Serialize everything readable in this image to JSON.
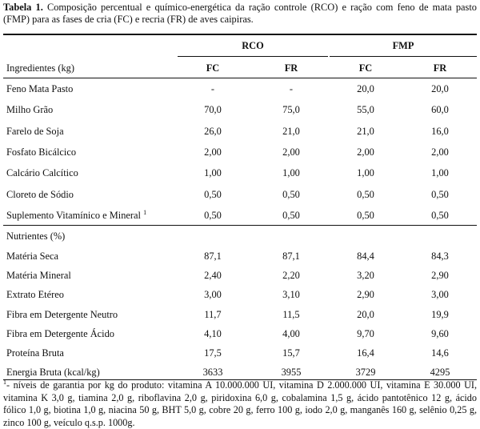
{
  "caption": {
    "label": "Tabela 1.",
    "text": " Composição percentual e químico-energética da ração controle (RCO) e ração com feno de mata pasto (FMP) para as fases de cria (FC) e recria (FR) de aves caipiras."
  },
  "groups": {
    "rco": "RCO",
    "fmp": "FMP"
  },
  "subheaders": {
    "ingredients": "Ingredientes (kg)",
    "fc": "FC",
    "fr": "FR"
  },
  "ingredients": [
    {
      "name": "Feno Mata Pasto",
      "values": [
        "-",
        "-",
        "20,0",
        "20,0"
      ]
    },
    {
      "name": "Milho Grão",
      "values": [
        "70,0",
        "75,0",
        "55,0",
        "60,0"
      ]
    },
    {
      "name": "Farelo de Soja",
      "values": [
        "26,0",
        "21,0",
        "21,0",
        "16,0"
      ]
    },
    {
      "name": "Fosfato Bicálcico",
      "values": [
        "2,00",
        "2,00",
        "2,00",
        "2,00"
      ]
    },
    {
      "name": "Calcário Calcítico",
      "values": [
        "1,00",
        "1,00",
        "1,00",
        "1,00"
      ]
    },
    {
      "name": "Cloreto de Sódio",
      "values": [
        "0,50",
        "0,50",
        "0,50",
        "0,50"
      ]
    },
    {
      "name": "Suplemento Vitamínico e Mineral",
      "sup": "1",
      "values": [
        "0,50",
        "0,50",
        "0,50",
        "0,50"
      ]
    }
  ],
  "nutrients_header": "Nutrientes (%)",
  "nutrients": [
    {
      "name": "Matéria Seca",
      "values": [
        "87,1",
        "87,1",
        "84,4",
        "84,3"
      ]
    },
    {
      "name": "Matéria Mineral",
      "values": [
        "2,40",
        "2,20",
        "3,20",
        "2,90"
      ]
    },
    {
      "name": "Extrato Etéreo",
      "values": [
        "3,00",
        "3,10",
        "2,90",
        "3,00"
      ]
    },
    {
      "name": "Fibra em Detergente Neutro",
      "values": [
        "11,7",
        "11,5",
        "20,0",
        "19,9"
      ]
    },
    {
      "name": "Fibra em Detergente Ácido",
      "values": [
        "4,10",
        "4,00",
        "9,70",
        "9,60"
      ]
    },
    {
      "name": "Proteína Bruta",
      "values": [
        "17,5",
        "15,7",
        "16,4",
        "14,6"
      ]
    },
    {
      "name": "Energia Bruta (kcal/kg)",
      "values": [
        "3633",
        "3955",
        "3729",
        "4295"
      ]
    }
  ],
  "footnote": {
    "mark": "1",
    "text": "- níveis de garantia por kg do produto: vitamina A 10.000.000 UI, vitamina D 2.000.000 UI, vitamina E 30.000 UI, vitamina K 3,0 g, tiamina 2,0 g, riboflavina 2,0 g, piridoxina 6,0 g, cobalamina 1,5 g, ácido pantotênico 12 g, ácido fólico 1,0 g, biotina 1,0 g, niacina 50 g, BHT 5,0 g, cobre 20 g, ferro 100 g, iodo 2,0 g, manganês 160 g, selênio 0,25 g, zinco 100 g, veículo q.s.p. 1000g."
  }
}
